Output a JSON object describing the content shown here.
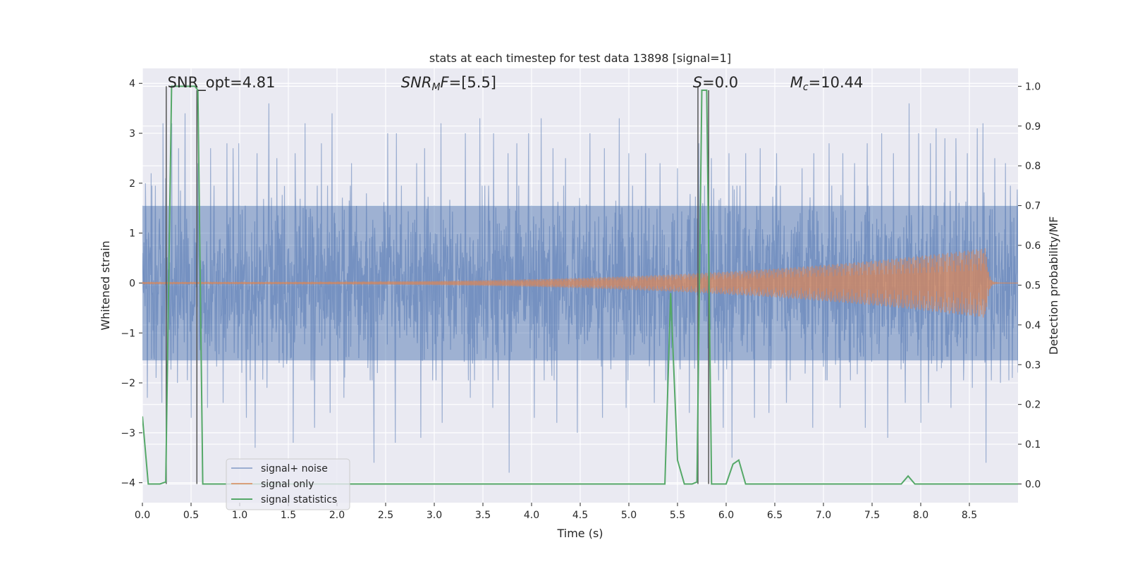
{
  "chart_data": {
    "type": "line",
    "title": "stats at each timestep for test data 13898 [signal=1]",
    "xlabel": "Time (s)",
    "ylabel_left": "Whitened strain",
    "ylabel_right": "Detection probability/MF",
    "xlim": [
      0.0,
      9.0
    ],
    "ylim_left": [
      -4.4,
      4.3
    ],
    "ylim_right": [
      -0.047,
      1.045
    ],
    "x_ticks": [
      0.0,
      0.5,
      1.0,
      1.5,
      2.0,
      2.5,
      3.0,
      3.5,
      4.0,
      4.5,
      5.0,
      5.5,
      6.0,
      6.5,
      7.0,
      7.5,
      8.0,
      8.5
    ],
    "x_tick_labels": [
      "0.0",
      "0.5",
      "1.0",
      "1.5",
      "2.0",
      "2.5",
      "3.0",
      "3.5",
      "4.0",
      "4.5",
      "5.0",
      "5.5",
      "6.0",
      "6.5",
      "7.0",
      "7.5",
      "8.0",
      "8.5"
    ],
    "y_left_ticks": [
      4,
      3,
      2,
      1,
      0,
      -1,
      -2,
      -3,
      -4
    ],
    "y_left_tick_labels": [
      "4",
      "3",
      "2",
      "1",
      "0",
      "−1",
      "−2",
      "−3",
      "−4"
    ],
    "y_right_ticks": [
      1.0,
      0.9,
      0.8,
      0.7,
      0.6,
      0.5,
      0.4,
      0.3,
      0.2,
      0.1,
      0.0
    ],
    "y_right_tick_labels": [
      "1.0",
      "0.9",
      "0.8",
      "0.7",
      "0.6",
      "0.5",
      "0.4",
      "0.3",
      "0.2",
      "0.1",
      "0.0"
    ],
    "grid": true,
    "legend_position": "lower-left",
    "annotations": [
      {
        "html": "SNR_opt=4.81",
        "x": 0.2
      },
      {
        "html": "<tspan font-style='italic'>SNR</tspan><tspan font-style='italic' font-size='14' dy='4'>M</tspan><tspan font-style='italic' dy='-4'>F</tspan>=[5.5]",
        "x": 2.6
      },
      {
        "html": "<tspan font-style='italic'>S</tspan>=0.0",
        "x": 5.6
      },
      {
        "html": "<tspan font-style='italic'>M</tspan><tspan font-style='italic' font-size='14' dy='4'>c</tspan><tspan dy='-4'>=10.44</tspan>",
        "x": 6.6
      }
    ],
    "annotation_y": 4.0,
    "series": [
      {
        "name": "signal+ noise",
        "axis": "left",
        "color": "#4c72b0",
        "opacity": 0.5,
        "kind": "noise",
        "sample_count": 2300,
        "sigma": 1.0,
        "envelope": 1.55,
        "positive_spikes": [
          [
            0.03,
            2.0
          ],
          [
            0.09,
            2.2
          ],
          [
            0.21,
            3.2
          ],
          [
            0.24,
            2.1
          ],
          [
            0.3,
            3.2
          ],
          [
            0.37,
            2.7
          ],
          [
            0.44,
            3.4
          ],
          [
            0.57,
            2.4
          ],
          [
            0.7,
            2.7
          ],
          [
            0.87,
            2.8
          ],
          [
            0.93,
            2.7
          ],
          [
            0.99,
            2.8
          ],
          [
            1.07,
            2.9
          ],
          [
            1.18,
            2.6
          ],
          [
            1.3,
            3.6
          ],
          [
            1.38,
            2.5
          ],
          [
            1.57,
            2.6
          ],
          [
            1.67,
            3.2
          ],
          [
            1.84,
            2.8
          ],
          [
            1.95,
            3.4
          ],
          [
            2.15,
            2.4
          ],
          [
            2.38,
            2.5
          ],
          [
            2.52,
            3.0
          ],
          [
            2.61,
            3.0
          ],
          [
            2.82,
            2.4
          ],
          [
            2.9,
            2.7
          ],
          [
            3.07,
            3.2
          ],
          [
            3.32,
            3.0
          ],
          [
            3.47,
            3.3
          ],
          [
            3.61,
            3.0
          ],
          [
            3.76,
            2.6
          ],
          [
            3.85,
            2.8
          ],
          [
            3.97,
            3.0
          ],
          [
            4.1,
            3.3
          ],
          [
            4.22,
            2.7
          ],
          [
            4.35,
            2.5
          ],
          [
            4.6,
            3.0
          ],
          [
            4.75,
            2.7
          ],
          [
            4.9,
            3.3
          ],
          [
            5.0,
            2.6
          ],
          [
            5.17,
            2.6
          ],
          [
            5.32,
            2.4
          ],
          [
            5.5,
            2.3
          ],
          [
            5.72,
            2.8
          ],
          [
            5.85,
            2.5
          ],
          [
            6.03,
            2.6
          ],
          [
            6.2,
            2.6
          ],
          [
            6.35,
            2.7
          ],
          [
            6.52,
            2.6
          ],
          [
            6.78,
            2.3
          ],
          [
            6.9,
            2.6
          ],
          [
            7.06,
            2.8
          ],
          [
            7.2,
            2.6
          ],
          [
            7.32,
            2.4
          ],
          [
            7.45,
            2.8
          ],
          [
            7.6,
            3.0
          ],
          [
            7.72,
            2.6
          ],
          [
            7.88,
            3.6
          ],
          [
            7.98,
            3.0
          ],
          [
            8.1,
            2.8
          ],
          [
            8.16,
            3.1
          ],
          [
            8.25,
            2.9
          ],
          [
            8.36,
            2.9
          ],
          [
            8.48,
            2.6
          ],
          [
            8.58,
            3.1
          ],
          [
            8.64,
            3.2
          ],
          [
            8.76,
            2.5
          ],
          [
            8.87,
            2.4
          ],
          [
            8.94,
            2.4
          ]
        ],
        "negative_spikes": [
          [
            0.05,
            -2.3
          ],
          [
            0.14,
            -1.9
          ],
          [
            0.2,
            -2.4
          ],
          [
            0.36,
            -2.0
          ],
          [
            0.5,
            -2.7
          ],
          [
            0.67,
            -2.5
          ],
          [
            0.83,
            -2.4
          ],
          [
            1.07,
            -2.7
          ],
          [
            1.16,
            -3.3
          ],
          [
            1.28,
            -2.1
          ],
          [
            1.55,
            -3.2
          ],
          [
            1.77,
            -2.9
          ],
          [
            1.93,
            -2.6
          ],
          [
            2.07,
            -2.3
          ],
          [
            2.38,
            -3.6
          ],
          [
            2.6,
            -3.2
          ],
          [
            2.86,
            -3.1
          ],
          [
            3.08,
            -2.8
          ],
          [
            3.37,
            -2.3
          ],
          [
            3.6,
            -2.5
          ],
          [
            3.77,
            -3.8
          ],
          [
            4.03,
            -2.7
          ],
          [
            4.26,
            -2.8
          ],
          [
            4.47,
            -3.0
          ],
          [
            4.73,
            -2.7
          ],
          [
            4.97,
            -2.5
          ],
          [
            5.26,
            -2.4
          ],
          [
            5.4,
            -2.3
          ],
          [
            5.62,
            -2.6
          ],
          [
            5.97,
            -2.9
          ],
          [
            6.06,
            -3.5
          ],
          [
            6.29,
            -2.7
          ],
          [
            6.44,
            -2.6
          ],
          [
            6.62,
            -2.4
          ],
          [
            6.89,
            -2.9
          ],
          [
            7.17,
            -2.5
          ],
          [
            7.43,
            -2.9
          ],
          [
            7.66,
            -3.1
          ],
          [
            7.84,
            -2.4
          ],
          [
            8.0,
            -2.8
          ],
          [
            8.08,
            -2.4
          ],
          [
            8.31,
            -2.5
          ],
          [
            8.53,
            -2.1
          ],
          [
            8.67,
            -3.6
          ],
          [
            8.82,
            -2.0
          ],
          [
            8.94,
            -1.9
          ]
        ]
      },
      {
        "name": "signal only",
        "axis": "left",
        "color": "#dd8452",
        "opacity": 0.7,
        "kind": "chirp",
        "t_start": 0.0,
        "t_merge": 8.67,
        "t_end": 9.0,
        "amp_start": 0.02,
        "amp_peak": 0.7,
        "amp_power": 3.2
      },
      {
        "name": "signal statistics",
        "axis": "right",
        "color": "#55a868",
        "kind": "line",
        "x": [
          0.0,
          0.06,
          0.18,
          0.24,
          0.3,
          0.32,
          0.54,
          0.57,
          0.62,
          0.69,
          5.37,
          5.43,
          5.5,
          5.57,
          5.65,
          5.7,
          5.75,
          5.8,
          5.85,
          5.9,
          6.0,
          6.07,
          6.13,
          6.2,
          7.8,
          7.87,
          7.94,
          8.0,
          9.0
        ],
        "y": [
          0.17,
          0.0,
          0.0,
          0.005,
          1.0,
          1.0,
          1.0,
          0.99,
          0.0,
          0.0,
          0.0,
          0.48,
          0.06,
          0.0,
          0.0,
          0.005,
          0.99,
          0.99,
          0.0,
          0.0,
          0.0,
          0.05,
          0.06,
          0.0,
          0.0,
          0.02,
          0.0,
          0.0,
          0.0
        ]
      }
    ],
    "vertical_markers": [
      {
        "x": 0.245,
        "y_low": 0.0,
        "y_high": 1.0
      },
      {
        "x": 0.56,
        "y_low": 0.0,
        "y_high": 0.99
      },
      {
        "x": 5.71,
        "y_low": 0.0,
        "y_high": 1.0
      },
      {
        "x": 5.82,
        "y_low": 0.0,
        "y_high": 0.99
      }
    ],
    "marker_color": "#555555"
  }
}
